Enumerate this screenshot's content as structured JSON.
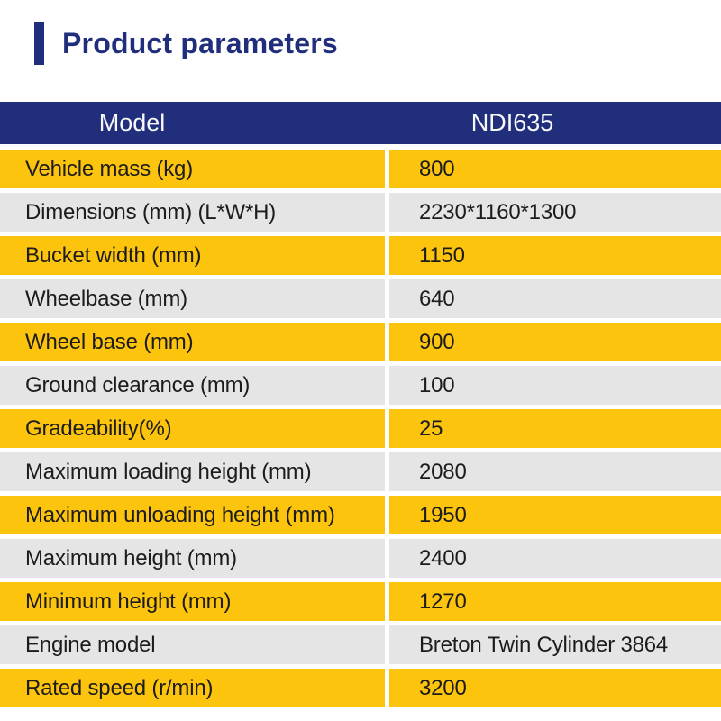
{
  "colors": {
    "page_bg": "#ffffff",
    "navy": "#212e7c",
    "yellow": "#fdc40e",
    "gray": "#e5e5e5",
    "header_text": "#f7f8fb",
    "row_text": "#1c1c1c"
  },
  "header": {
    "title": "Product parameters"
  },
  "table": {
    "header": {
      "model_label": "Model",
      "model_value": "NDI635"
    },
    "rows": [
      {
        "label": "Vehicle mass (kg)",
        "value": "800"
      },
      {
        "label": "Dimensions (mm) (L*W*H)",
        "value": "2230*1160*1300"
      },
      {
        "label": "Bucket width (mm)",
        "value": "1150"
      },
      {
        "label": "Wheelbase (mm)",
        "value": "640"
      },
      {
        "label": "Wheel base (mm)",
        "value": "900"
      },
      {
        "label": "Ground clearance (mm)",
        "value": "100"
      },
      {
        "label": "Gradeability(%)",
        "value": "25"
      },
      {
        "label": "Maximum loading height (mm)",
        "value": "2080"
      },
      {
        "label": "Maximum unloading height (mm)",
        "value": "1950"
      },
      {
        "label": "Maximum height (mm)",
        "value": "2400"
      },
      {
        "label": "Minimum height (mm)",
        "value": "1270"
      },
      {
        "label": "Engine model",
        "value": "Breton Twin Cylinder 3864"
      },
      {
        "label": "Rated speed (r/min)",
        "value": "3200"
      }
    ]
  }
}
